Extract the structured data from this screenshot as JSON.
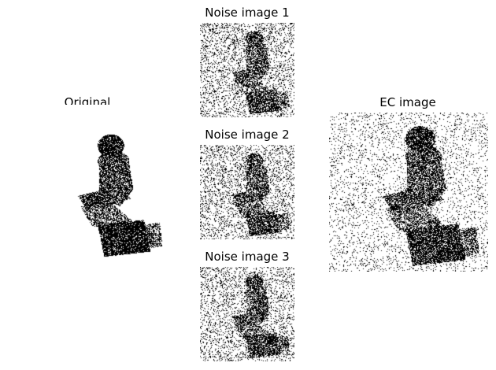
{
  "figure": {
    "background": "#ffffff",
    "ink": "#000000"
  },
  "panels": {
    "original": {
      "title": "Original",
      "noise_level": 0.0
    },
    "noise1": {
      "title": "Noise image 1",
      "noise_level": 0.18
    },
    "noise2": {
      "title": "Noise image 2",
      "noise_level": 0.18
    },
    "noise3": {
      "title": "Noise image 3",
      "noise_level": 0.18
    },
    "ec": {
      "title": "EC image",
      "noise_level": 0.09
    }
  }
}
